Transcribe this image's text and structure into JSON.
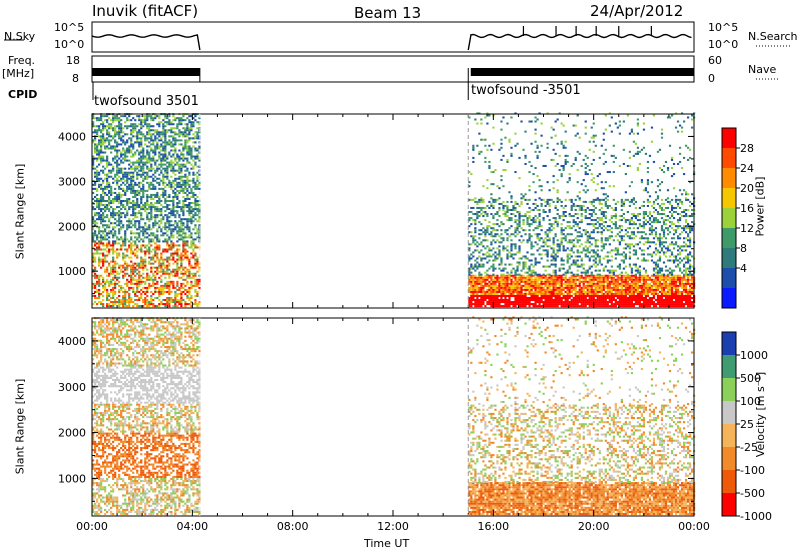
{
  "header": {
    "station": "Inuvik (fitACF)",
    "beam": "Beam 13",
    "date": "24/Apr/2012"
  },
  "top_panels": {
    "nsky_label": "N.Sky",
    "nsky_left_ticks": [
      "10^5",
      "10^0"
    ],
    "nsky_right_ticks": [
      "10^5",
      "10^0"
    ],
    "nsearch_label": "N.Search",
    "freq_label_1": "Freq.",
    "freq_label_2": "[MHz]",
    "freq_ticks": [
      "18",
      "8"
    ],
    "nave_ticks": [
      "60",
      "0"
    ],
    "nave_label": "Nave",
    "cpid_label": "CPID",
    "cpid_1": "twofsound 3501",
    "cpid_2": "twofsound -3501"
  },
  "chart_data": [
    {
      "type": "heatmap",
      "title": "",
      "ylabel": "Slant Range [km]",
      "xlabel": "",
      "ylim": [
        180,
        4500
      ],
      "yticks": [
        "4000",
        "3000",
        "2000",
        "1000"
      ],
      "colorbar_label": "Power [dB]",
      "colorbar_ticks": [
        "28",
        "24",
        "20",
        "16",
        "12",
        "8",
        "4"
      ],
      "colorbar_colors": [
        "#ff0000",
        "#ff4a00",
        "#ff8c00",
        "#f6c700",
        "#9bd13b",
        "#3f9a6a",
        "#2f7a7a",
        "#1d4faa",
        "#0a1cff"
      ],
      "data_gaps_ut": [
        [
          4.3,
          15.0
        ]
      ]
    },
    {
      "type": "heatmap",
      "title": "",
      "ylabel": "Slant Range [km]",
      "xlabel": "Time UT",
      "ylim": [
        180,
        4500
      ],
      "yticks": [
        "4000",
        "3000",
        "2000",
        "1000"
      ],
      "xticks": [
        "00:00",
        "04:00",
        "08:00",
        "12:00",
        "16:00",
        "20:00",
        "00:00"
      ],
      "xlim_ut": [
        0,
        24
      ],
      "colorbar_label": "Velocity [m s⁻¹]",
      "colorbar_ticks": [
        "1000",
        "500",
        "100",
        "25",
        "-25",
        "-100",
        "-500",
        "-1000"
      ],
      "colorbar_colors": [
        "#1a3fb0",
        "#3f9c72",
        "#8bd05a",
        "#c8c8c8",
        "#f5b45a",
        "#f08a2a",
        "#ef5a0a",
        "#ff0000"
      ],
      "data_gaps_ut": [
        [
          4.3,
          15.0
        ]
      ]
    }
  ]
}
